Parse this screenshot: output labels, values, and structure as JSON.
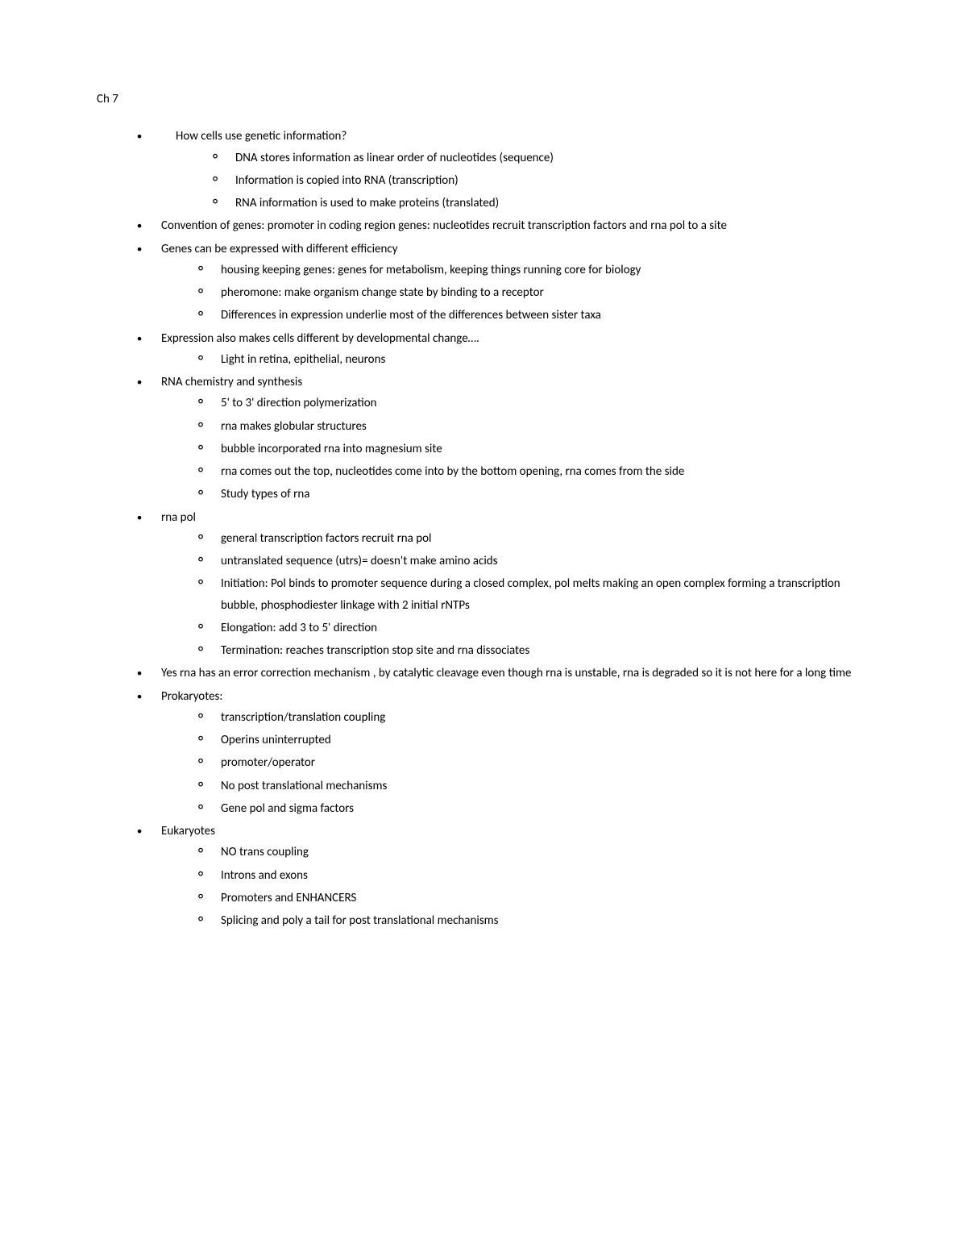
{
  "title": "Ch 7",
  "items": [
    {
      "text": "How cells use genetic information?",
      "firstIndent": true,
      "children": [
        {
          "text": "DNA stores information as linear order of nucleotides (sequence)"
        },
        {
          "text": "Information is copied into RNA (transcription)"
        },
        {
          "text": "RNA information is used to make proteins (translated)"
        }
      ]
    },
    {
      "text": "Convention of genes: promoter in coding region genes: nucleotides recruit transcription factors and rna pol to a site"
    },
    {
      "text": "Genes can be expressed with different efficiency",
      "children": [
        {
          "text": "housing keeping genes: genes for metabolism, keeping things running core for biology"
        },
        {
          "text": "pheromone: make organism change state by binding to a receptor"
        },
        {
          "text": "Differences in expression underlie most of the differences between sister taxa"
        }
      ]
    },
    {
      "text": "Expression also makes cells different by developmental change….",
      "children": [
        {
          "text": "Light in retina, epithelial, neurons"
        }
      ]
    },
    {
      "text": "RNA chemistry and synthesis",
      "children": [
        {
          "text": "5' to 3' direction polymerization"
        },
        {
          "text": "rna makes globular structures"
        },
        {
          "text": "bubble incorporated rna into magnesium site"
        },
        {
          "text": "rna comes out the top, nucleotides come into by the bottom opening, rna comes from the side"
        },
        {
          "text": "Study types of rna"
        }
      ]
    },
    {
      "text": "rna pol",
      "children": [
        {
          "text": "general transcription factors recruit rna pol"
        },
        {
          "text": "untranslated sequence (utrs)= doesn't make amino acids"
        },
        {
          "text": "Initiation: Pol binds to promoter sequence during a closed complex, pol melts making an open complex forming a transcription bubble, phosphodiester linkage with 2 initial rNTPs"
        },
        {
          "text": "Elongation: add 3 to 5' direction"
        },
        {
          "text": "Termination: reaches transcription stop site and rna dissociates"
        }
      ]
    },
    {
      "text": "Yes rna has an error correction mechanism , by catalytic cleavage even though rna is unstable, rna is degraded so it is not here for a long time"
    },
    {
      "text": "Prokaryotes:",
      "children": [
        {
          "text": "transcription/translation coupling"
        },
        {
          "text": "Operins uninterrupted"
        },
        {
          "text": "promoter/operator"
        },
        {
          "text": "No post translational mechanisms"
        },
        {
          "text": "Gene pol and sigma factors"
        }
      ]
    },
    {
      "text": "Eukaryotes",
      "children": [
        {
          "text": "NO trans coupling"
        },
        {
          "text": "Introns and exons"
        },
        {
          "text": "Promoters and ENHANCERS"
        },
        {
          "text": "Splicing and poly a tail for post translational mechanisms"
        }
      ]
    }
  ]
}
